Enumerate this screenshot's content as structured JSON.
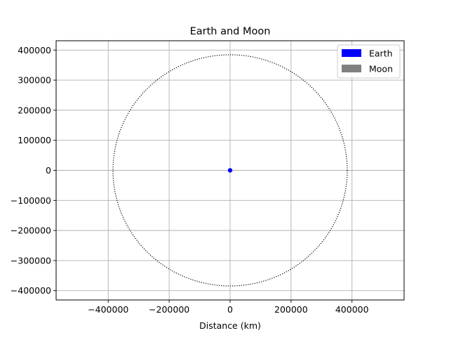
{
  "chart_data": {
    "type": "scatter",
    "title": "Earth and Moon",
    "xlabel": "Distance (km)",
    "ylabel": "",
    "xlim": [
      -571000,
      571000
    ],
    "ylim": [
      -431000,
      431000
    ],
    "xticks": [
      -400000,
      -200000,
      0,
      200000,
      400000
    ],
    "xtick_labels": [
      "−400000",
      "−200000",
      "0",
      "200000",
      "400000"
    ],
    "yticks": [
      400000,
      300000,
      200000,
      100000,
      0,
      -100000,
      -200000,
      -300000,
      -400000
    ],
    "ytick_labels": [
      "400000",
      "300000",
      "200000",
      "100000",
      "0",
      "−100000",
      "−200000",
      "−300000",
      "−400000"
    ],
    "grid": true,
    "legend_position": "top-right",
    "legend": [
      {
        "label": "Earth",
        "color": "#0000ff"
      },
      {
        "label": "Moon",
        "color": "#808080"
      }
    ],
    "earth": {
      "x": 0,
      "y": 0,
      "radius": 6371,
      "color": "#0000ff"
    },
    "moon_orbit": {
      "center_x": 0,
      "center_y": 0,
      "radius": 384400,
      "style": "dotted",
      "color": "#000000"
    }
  }
}
